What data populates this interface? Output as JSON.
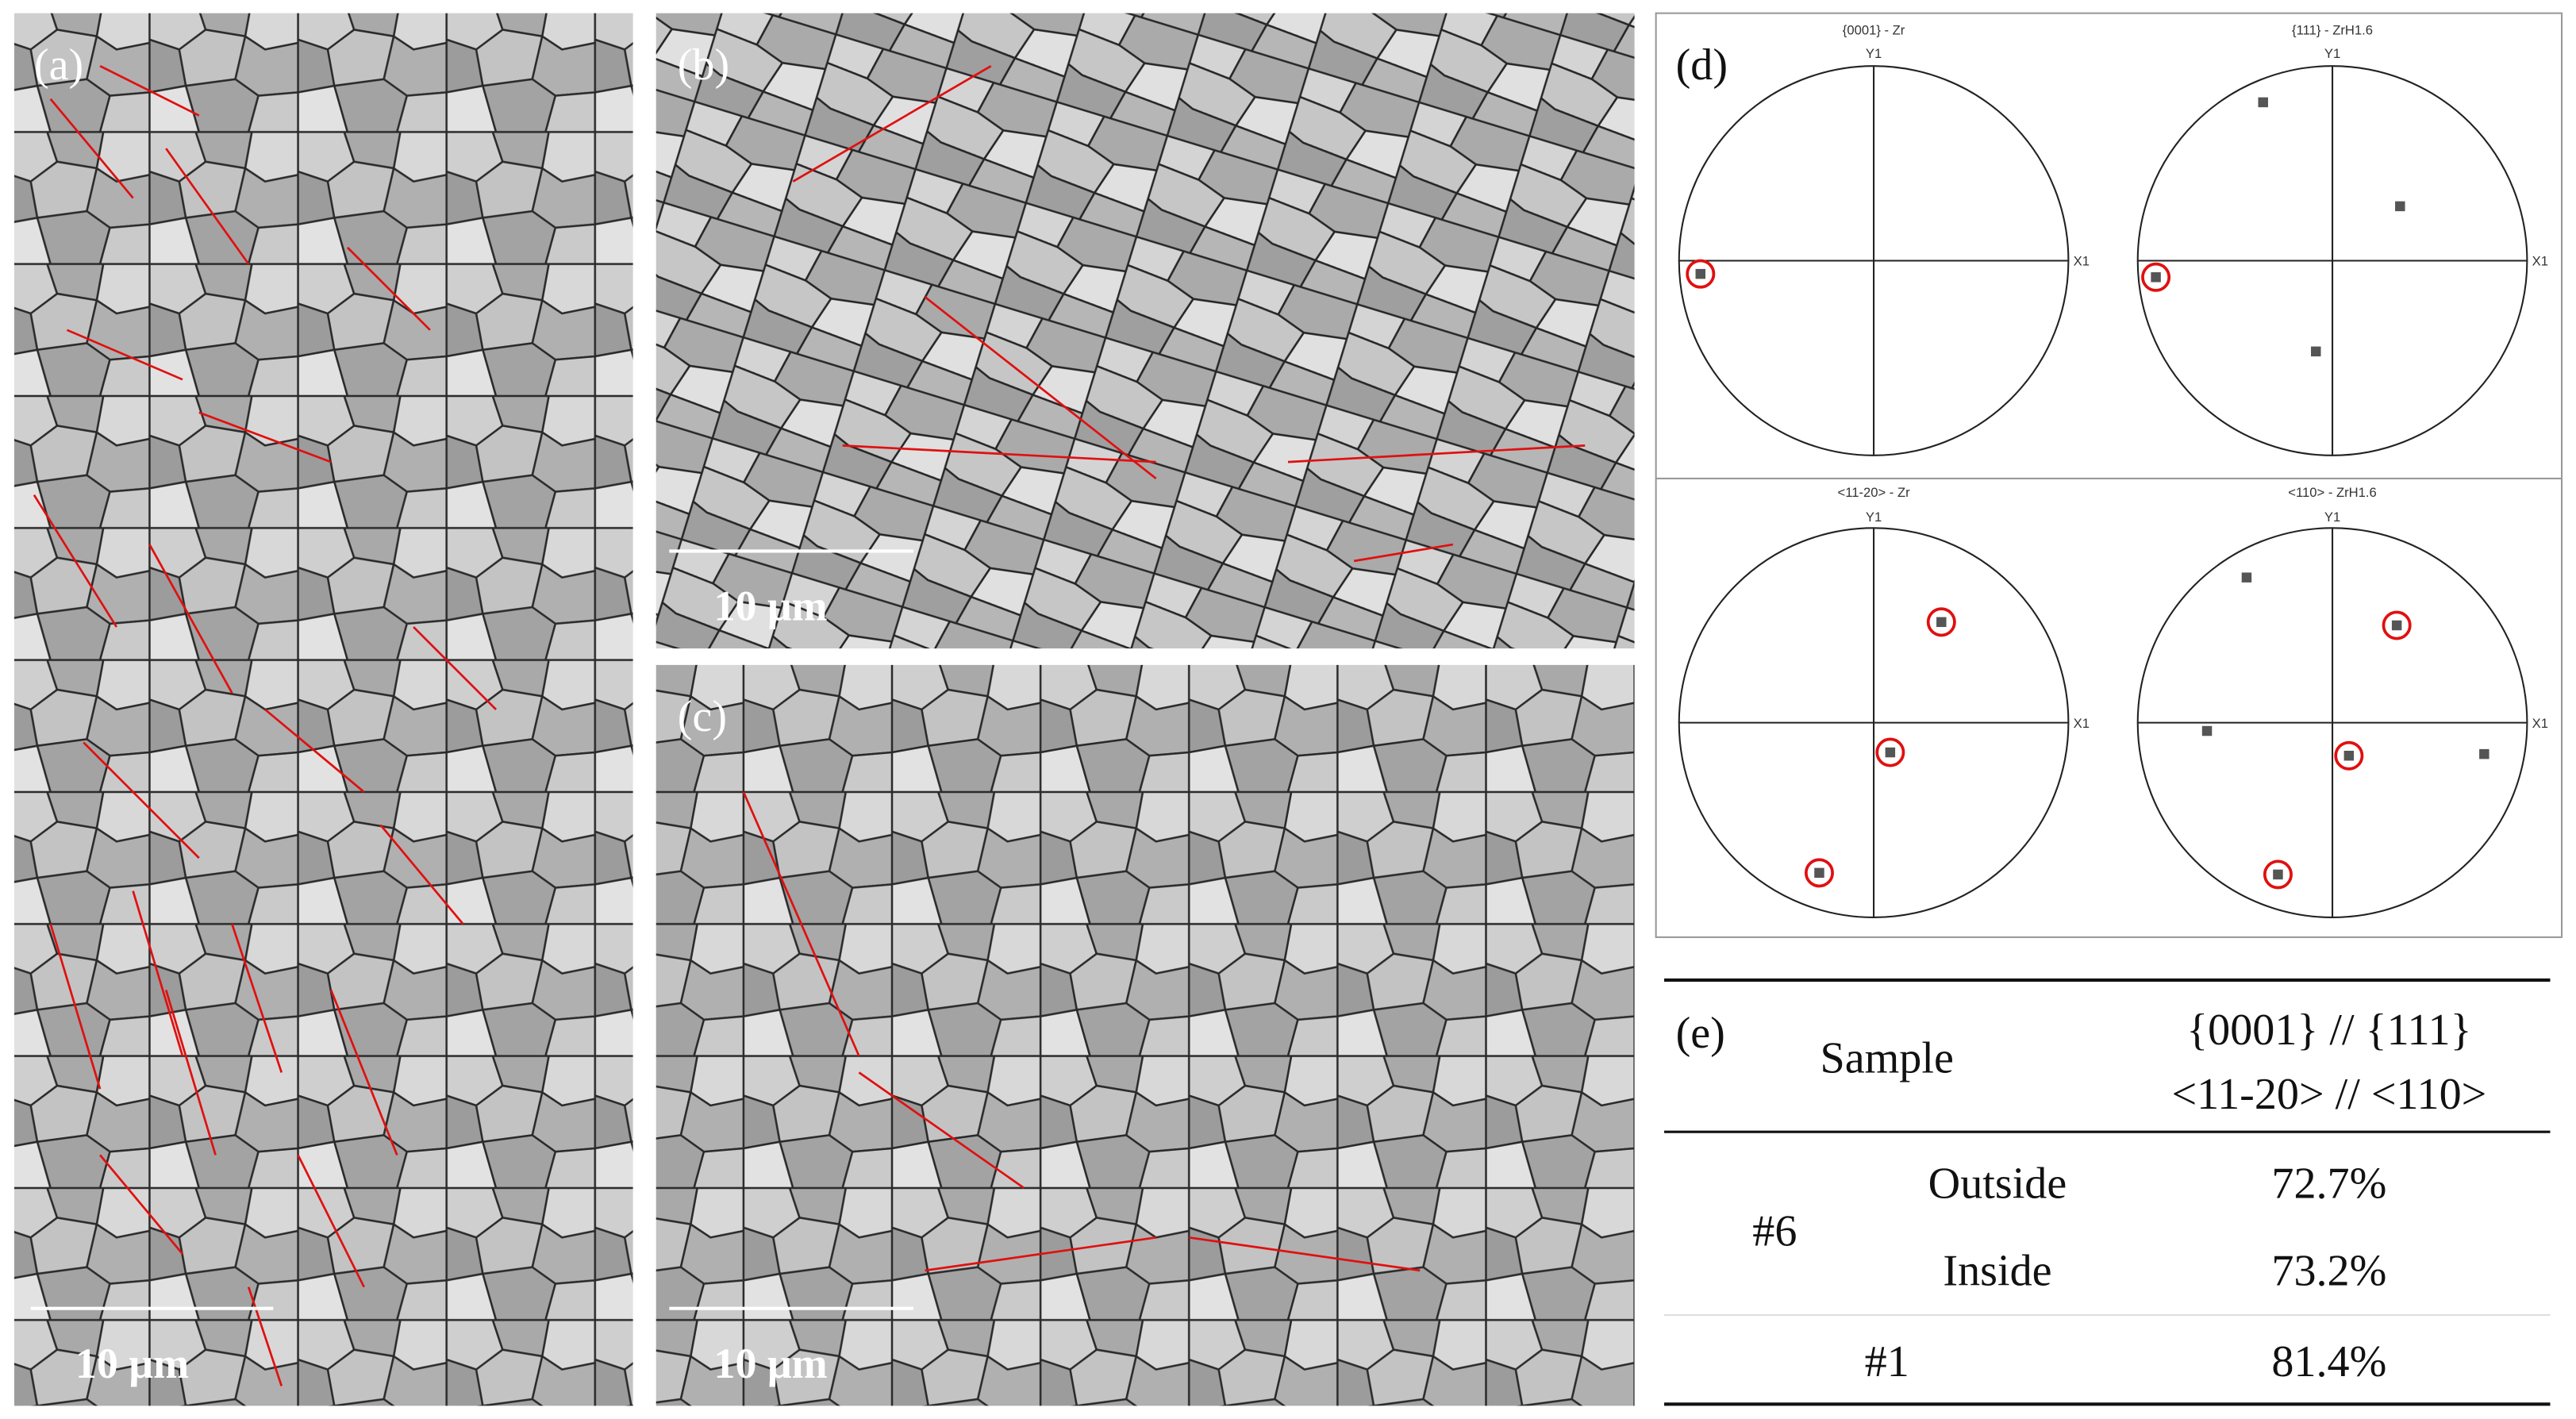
{
  "panels": {
    "a": {
      "label": "(a)",
      "scale_bar": "10 μm"
    },
    "b": {
      "label": "(b)",
      "scale_bar": "10 μm"
    },
    "c": {
      "label": "(c)",
      "scale_bar": "10 μm"
    },
    "d": {
      "label": "(d)",
      "pole_figures": [
        {
          "title": "{0001} - Zr",
          "y_axis": "Y1",
          "x_axis": "X1"
        },
        {
          "title": "{111} - ZrH1.6",
          "y_axis": "Y1",
          "x_axis": "X1"
        },
        {
          "title": "<11-20> - Zr",
          "y_axis": "Y1",
          "x_axis": "X1"
        },
        {
          "title": "<110> - ZrH1.6",
          "y_axis": "Y1",
          "x_axis": "X1"
        }
      ]
    },
    "e": {
      "label": "(e)",
      "table": {
        "header": [
          "Sample",
          "{0001} // {111}",
          "<11-20> // <110>"
        ],
        "rows": [
          {
            "sample": "#6",
            "location": "Outside",
            "value": "72.7%"
          },
          {
            "location": "Inside",
            "value": "73.2%"
          },
          {
            "sample": "#1",
            "value": "81.4%"
          }
        ]
      }
    }
  }
}
